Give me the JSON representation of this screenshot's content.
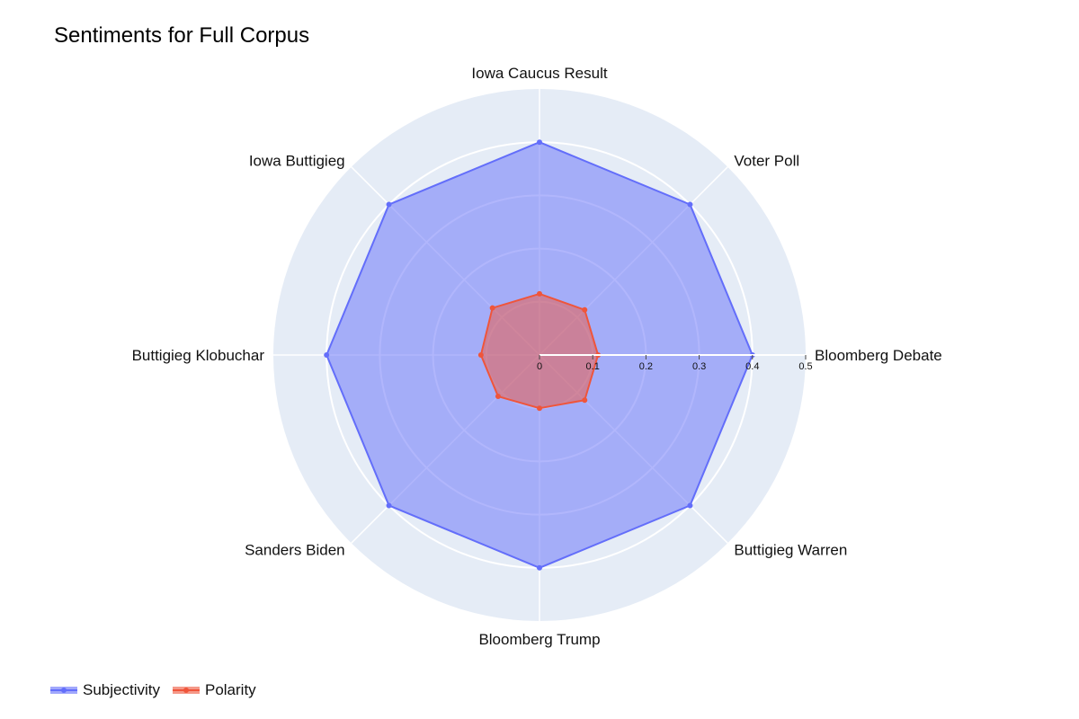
{
  "chart_data": {
    "type": "radar",
    "title": "Sentiments for Full Corpus",
    "categories": [
      "Bloomberg Debate",
      "Voter Poll",
      "Iowa Caucus Result",
      "Iowa Buttigieg",
      "Buttigieg Klobuchar",
      "Sanders Biden",
      "Bloomberg Trump",
      "Buttigieg Warren"
    ],
    "radial_range": [
      0,
      0.5
    ],
    "radial_ticks": [
      "0",
      "0.1",
      "0.2",
      "0.3",
      "0.4",
      "0.5"
    ],
    "radial_tick_values": [
      0,
      0.1,
      0.2,
      0.3,
      0.4,
      0.5
    ],
    "series": [
      {
        "name": "Subjectivity",
        "color": "#636efa",
        "values": [
          0.4,
          0.4,
          0.4,
          0.4,
          0.4,
          0.4,
          0.4,
          0.4
        ]
      },
      {
        "name": "Polarity",
        "color": "#ef553b",
        "values": [
          0.11,
          0.12,
          0.115,
          0.125,
          0.11,
          0.11,
          0.1,
          0.12
        ]
      }
    ],
    "legend_position": "bottom-left",
    "grid": true
  }
}
